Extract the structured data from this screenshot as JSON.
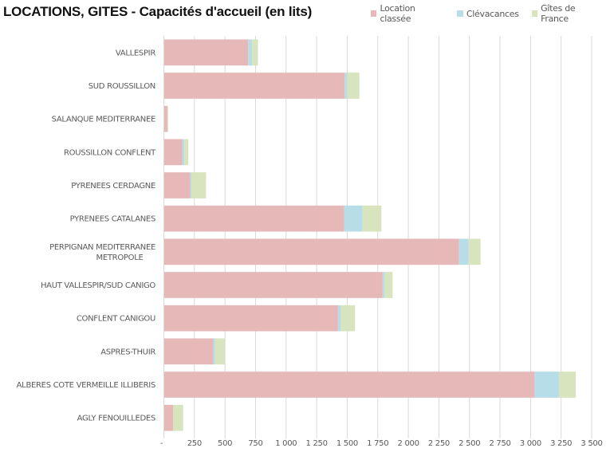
{
  "chart_data": {
    "type": "bar",
    "orientation": "horizontal",
    "stacked": true,
    "title": "LOCATIONS, GITES - Capacités d'accueil (en lits)",
    "xlabel": "",
    "ylabel": "",
    "xlim": [
      0,
      3500
    ],
    "grid": true,
    "legend_position": "top-right",
    "x_ticks": [
      0,
      250,
      500,
      750,
      1000,
      1250,
      1500,
      1750,
      2000,
      2250,
      2500,
      2750,
      3000,
      3250,
      3500
    ],
    "x_tick_labels": [
      "-",
      "250",
      "500",
      "750",
      "1 000",
      "1 250",
      "1 500",
      "1 750",
      "2 000",
      "2 250",
      "2 500",
      "2 750",
      "3 000",
      "3 250",
      "3 500"
    ],
    "categories": [
      [
        "VALLESPIR"
      ],
      [
        "SUD ROUSSILLON"
      ],
      [
        "SALANQUE MEDITERRANEE"
      ],
      [
        "ROUSSILLON CONFLENT"
      ],
      [
        "PYRENEES CERDAGNE"
      ],
      [
        "PYRENEES CATALANES"
      ],
      [
        "PERPIGNAN MEDITERRANEE",
        "METROPOLE"
      ],
      [
        "HAUT VALLESPIR/SUD CANIGO"
      ],
      [
        "CONFLENT CANIGOU"
      ],
      [
        "ASPRES-THUIR"
      ],
      [
        "ALBERES COTE VERMEILLE ILLIBERIS"
      ],
      [
        "AGLY FENOUILLEDES"
      ]
    ],
    "series": [
      {
        "name": "Location classée",
        "color": "#e6b9b8",
        "values": [
          690,
          1480,
          30,
          150,
          215,
          1475,
          2415,
          1790,
          1425,
          405,
          3035,
          75
        ]
      },
      {
        "name": "Clévacances",
        "color": "#b7dee8",
        "values": [
          32,
          20,
          0,
          17,
          10,
          150,
          78,
          18,
          24,
          15,
          197,
          0
        ]
      },
      {
        "name": "Gîtes de France",
        "color": "#d7e4bd",
        "values": [
          48,
          100,
          5,
          33,
          120,
          155,
          98,
          63,
          115,
          80,
          138,
          83
        ]
      }
    ]
  },
  "colors": {
    "gridline": "#d9d9d9",
    "axis_text": "#595959",
    "title_text": "#111111"
  }
}
